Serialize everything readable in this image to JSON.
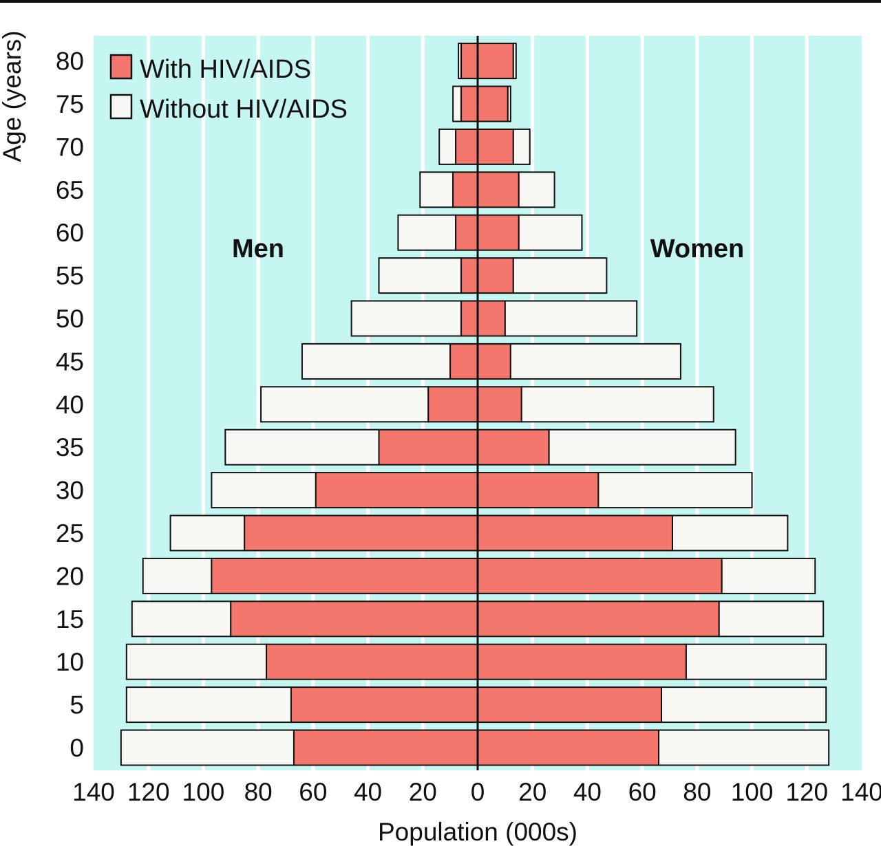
{
  "chart_data": {
    "type": "bar",
    "subtype": "population-pyramid",
    "title": "",
    "xlabel": "Population (000s)",
    "ylabel": "Age (years)",
    "xlim": [
      -140,
      140
    ],
    "x_ticks": [
      140,
      120,
      100,
      80,
      60,
      40,
      20,
      0,
      20,
      40,
      60,
      80,
      100,
      120,
      140
    ],
    "categories": [
      "0",
      "5",
      "10",
      "15",
      "20",
      "25",
      "30",
      "35",
      "40",
      "45",
      "50",
      "55",
      "60",
      "65",
      "70",
      "75",
      "80"
    ],
    "side_labels": {
      "left": "Men",
      "right": "Women"
    },
    "legend": {
      "position": "top-left",
      "items": [
        {
          "label": "With HIV/AIDS",
          "color": "#f4776e"
        },
        {
          "label": "Without HIV/AIDS",
          "color": "#f7f7f3"
        }
      ]
    },
    "grid": true,
    "series": [
      {
        "name": "With HIV/AIDS",
        "men": [
          67,
          68,
          77,
          90,
          97,
          85,
          59,
          36,
          18,
          10,
          6,
          6,
          8,
          9,
          8,
          6,
          6
        ],
        "women": [
          66,
          67,
          76,
          88,
          89,
          71,
          44,
          26,
          16,
          12,
          10,
          13,
          15,
          15,
          13,
          11,
          13
        ]
      },
      {
        "name": "Without HIV/AIDS",
        "men": [
          63,
          60,
          51,
          36,
          25,
          27,
          38,
          56,
          61,
          54,
          40,
          30,
          21,
          12,
          6,
          3,
          1
        ],
        "women": [
          62,
          60,
          51,
          38,
          34,
          42,
          56,
          68,
          70,
          62,
          48,
          34,
          23,
          13,
          6,
          1,
          1
        ]
      }
    ],
    "colors": {
      "background": "#c6f6f2",
      "gridline": "#ffffff",
      "with": "#f4776e",
      "without": "#f7f7f3",
      "outline": "#111111"
    }
  }
}
